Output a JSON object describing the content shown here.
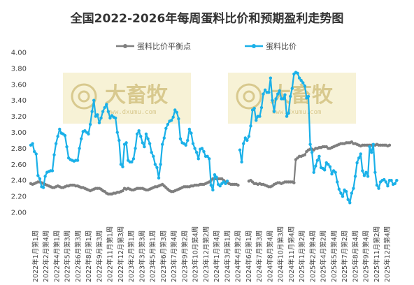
{
  "chart_data": {
    "type": "line",
    "title": "全国2022-2026年每周蛋料比价和预期盈利走势图",
    "ylim": [
      2.0,
      4.0
    ],
    "yticks": [
      "2.00",
      "2.20",
      "2.40",
      "2.60",
      "2.80",
      "3.00",
      "3.20",
      "3.40",
      "3.60",
      "3.80",
      "4.00"
    ],
    "grid": false,
    "legend_position": "top",
    "x_labels": [
      "2022年1月第1周",
      "2022年2月第4周",
      "2022年4月第1周",
      "2022年5月第3周",
      "2022年6月第3周",
      "2022年8月第1周",
      "2022年9月第3周",
      "2022年11月第1周",
      "2022年12月第3周",
      "2023年2月第1周",
      "2023年3月第3周",
      "2023年5月第1周",
      "2023年6月第3周",
      "2023年7月第4周",
      "2023年9月第2周",
      "2023年10月第4周",
      "2023年12月第2周",
      "2024年1月第4周",
      "2024年3月第1周",
      "2024年4月第2周",
      "2024年6月第1周",
      "2024年7月第3周",
      "2024年8月第4周",
      "2024年10月第3周",
      "2024年11月第4周",
      "2025年1月第2周",
      "2025年2月第4周",
      "2025年4月第2周",
      "2025年5月第4周",
      "2025年7月第2周",
      "2025年8月第4周",
      "2025年9月第4周",
      "2025年11月第2周",
      "2025年12月第4周"
    ],
    "series": [
      {
        "name": "蛋料比价平衡点",
        "color": "#7f7f7f",
        "marker": "circle",
        "values": [
          2.36,
          2.35,
          2.36,
          2.37,
          2.38,
          2.38,
          2.37,
          2.36,
          2.35,
          2.34,
          2.33,
          2.32,
          2.31,
          2.31,
          2.32,
          2.33,
          2.32,
          2.31,
          2.31,
          2.32,
          2.33,
          2.33,
          2.34,
          2.34,
          2.34,
          2.33,
          2.33,
          2.32,
          2.31,
          2.31,
          2.3,
          2.29,
          2.28,
          2.27,
          2.28,
          2.29,
          2.3,
          2.3,
          2.3,
          2.29,
          2.27,
          2.26,
          2.24,
          2.23,
          2.23,
          2.23,
          2.24,
          2.24,
          2.25,
          2.25,
          2.26,
          2.27,
          2.3,
          2.29,
          2.3,
          2.29,
          2.28,
          2.28,
          2.29,
          2.3,
          2.3,
          2.3,
          2.3,
          2.29,
          2.28,
          2.28,
          2.29,
          2.3,
          2.31,
          2.32,
          2.32,
          2.33,
          2.34,
          2.35,
          2.33,
          2.31,
          2.29,
          2.27,
          2.26,
          2.26,
          2.27,
          2.28,
          2.29,
          2.3,
          2.31,
          2.32,
          2.32,
          2.32,
          2.32,
          2.33,
          2.33,
          2.34,
          2.34,
          2.34,
          2.35,
          2.35,
          2.35,
          2.36,
          2.37,
          2.38,
          2.4,
          2.42,
          2.42,
          2.42,
          2.42,
          2.42,
          2.42,
          2.4,
          2.38,
          2.37,
          2.36,
          2.35,
          2.35,
          2.35,
          2.35,
          2.34,
          null,
          null,
          null,
          null,
          null,
          2.39,
          2.4,
          2.38,
          2.36,
          2.36,
          2.35,
          2.36,
          2.35,
          2.35,
          2.34,
          2.33,
          2.32,
          2.32,
          2.33,
          2.35,
          2.36,
          2.37,
          2.37,
          2.36,
          2.37,
          2.38,
          2.38,
          2.38,
          2.38,
          2.38,
          2.37,
          2.66,
          2.68,
          2.7,
          2.7,
          2.71,
          2.72,
          2.76,
          2.78,
          2.79,
          2.79,
          2.78,
          2.8,
          2.8,
          2.81,
          2.81,
          2.82,
          2.82,
          2.82,
          2.8,
          2.8,
          2.81,
          2.82,
          2.83,
          2.84,
          2.85,
          2.86,
          2.86,
          2.86,
          2.87,
          2.87,
          2.87,
          2.88,
          2.86,
          2.86,
          2.85,
          2.84,
          2.83,
          2.84,
          2.84,
          2.84,
          2.84,
          2.84,
          2.84,
          2.84,
          2.84,
          2.85,
          2.84,
          2.84,
          2.84,
          2.84,
          2.84,
          2.83,
          2.84
        ]
      },
      {
        "name": "蛋料比价",
        "color": "#1ab0e8",
        "marker": "circle",
        "values": [
          2.84,
          2.86,
          2.76,
          2.73,
          2.46,
          2.42,
          2.32,
          2.31,
          2.45,
          2.5,
          2.51,
          2.52,
          2.52,
          2.72,
          2.86,
          2.95,
          3.04,
          2.99,
          2.98,
          2.96,
          2.82,
          2.68,
          2.66,
          2.65,
          2.64,
          2.65,
          2.65,
          2.8,
          2.92,
          3.01,
          3.02,
          3.0,
          2.98,
          3.1,
          3.26,
          3.4,
          3.2,
          3.22,
          3.12,
          3.18,
          3.26,
          3.31,
          3.35,
          3.26,
          3.18,
          3.21,
          3.19,
          3.18,
          3.0,
          2.9,
          2.6,
          2.57,
          2.85,
          2.87,
          2.65,
          2.63,
          2.63,
          2.67,
          2.8,
          2.98,
          3.02,
          2.95,
          2.87,
          2.82,
          2.98,
          2.92,
          2.86,
          2.75,
          2.7,
          2.6,
          2.56,
          2.43,
          2.6,
          2.85,
          2.93,
          3.05,
          3.1,
          3.14,
          3.15,
          3.19,
          3.28,
          3.25,
          3.17,
          2.92,
          2.87,
          2.86,
          2.84,
          2.9,
          3.04,
          2.99,
          2.86,
          2.8,
          2.75,
          2.67,
          2.79,
          2.8,
          2.76,
          2.7,
          2.7,
          2.67,
          2.34,
          2.28,
          2.47,
          2.44,
          2.35,
          2.33,
          2.36,
          2.38,
          2.36,
          2.39,
          null,
          null,
          null,
          null,
          null,
          null,
          2.78,
          2.63,
          2.86,
          2.93,
          2.9,
          2.95,
          3.08,
          3.28,
          3.3,
          3.15,
          3.2,
          3.2,
          3.31,
          3.48,
          3.53,
          3.5,
          3.5,
          3.68,
          3.4,
          3.26,
          3.42,
          3.48,
          3.52,
          3.42,
          3.42,
          3.47,
          3.2,
          3.24,
          3.45,
          3.55,
          3.73,
          3.75,
          3.74,
          3.68,
          3.65,
          3.62,
          3.58,
          3.43,
          3.45,
          2.85,
          2.75,
          2.5,
          2.58,
          2.65,
          2.7,
          2.56,
          2.55,
          2.53,
          2.62,
          2.6,
          2.57,
          2.48,
          2.52,
          2.5,
          2.38,
          2.29,
          2.24,
          2.2,
          2.28,
          2.26,
          2.16,
          2.12,
          2.24,
          2.3,
          2.45,
          2.62,
          2.68,
          2.73,
          2.52,
          2.46,
          2.5,
          2.45,
          2.82,
          2.75,
          2.85,
          2.5,
          2.34,
          2.3,
          2.38,
          2.4,
          2.41,
          2.38,
          2.33,
          2.4,
          2.4,
          2.35,
          2.36,
          2.4
        ]
      }
    ]
  },
  "watermarks": [
    {
      "brand": "大畜牧",
      "url": "www.dxumu.com"
    },
    {
      "brand": "大畜牧",
      "url": "www.dxumu.com"
    }
  ]
}
